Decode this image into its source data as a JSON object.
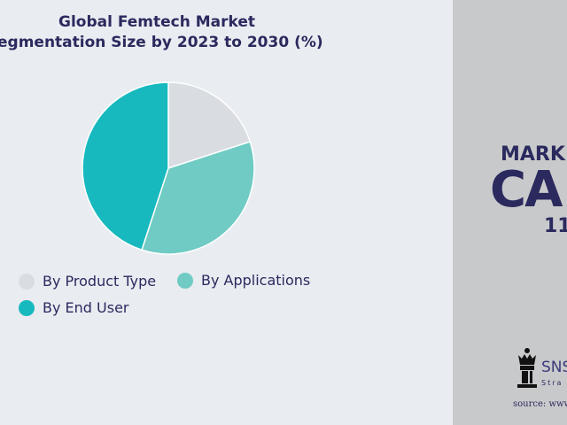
{
  "chart_data": {
    "type": "pie",
    "title_lines": [
      "Global Femtech Market",
      "egmentation Size by 2023 to 2030 (%)"
    ],
    "categories": [
      "By Product Type",
      "By Applications",
      "By End User"
    ],
    "values": [
      20,
      35,
      45
    ],
    "colors": [
      "#d9dde2",
      "#6fcbc4",
      "#17b9bf"
    ],
    "legend_placement": "bottom"
  },
  "side_panel": {
    "market_label": "MARK",
    "cagr_label": "CA",
    "cagr_value": "11.",
    "brand": "SNS",
    "brand_sub": "Stra",
    "source": "source: www"
  }
}
